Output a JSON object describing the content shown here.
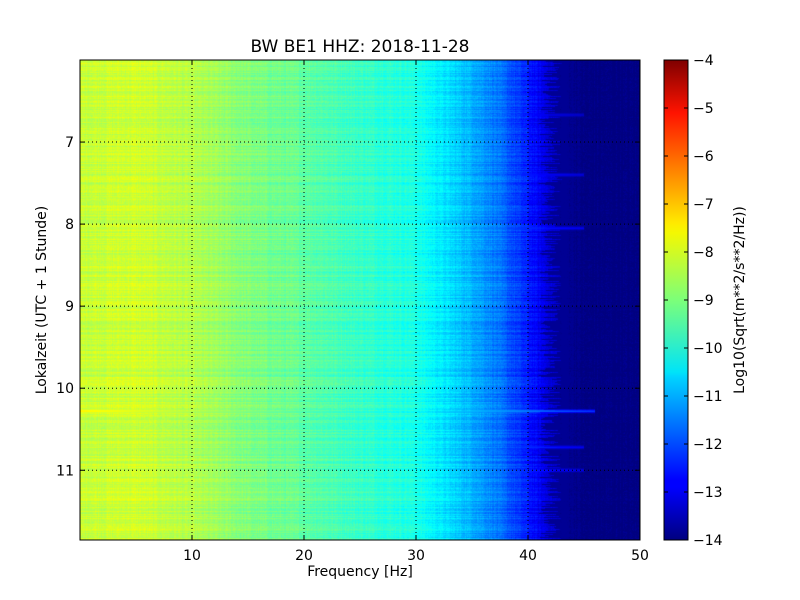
{
  "chart_data": {
    "type": "heatmap",
    "title": "BW BE1 HHZ: 2018-11-28",
    "xlabel": "Frequency [Hz]",
    "ylabel": "Lokalzeit (UTC + 1 Stunde)",
    "xlim": [
      0,
      50
    ],
    "ylim": [
      6.0,
      11.85
    ],
    "y_inverted": true,
    "x_ticks": [
      10,
      20,
      30,
      40,
      50
    ],
    "y_ticks": [
      7,
      8,
      9,
      10,
      11
    ],
    "grid": true,
    "colormap": "jet",
    "colorbar": {
      "label": "Log10(Sqrt(m**2/s**2/Hz))",
      "range": [
        -14,
        -4
      ],
      "ticks": [
        -4,
        -5,
        -6,
        -7,
        -8,
        -9,
        -10,
        -11,
        -12,
        -13,
        -14
      ]
    },
    "frequency_profile": {
      "x": [
        0,
        5,
        10,
        15,
        20,
        25,
        30,
        33,
        35,
        37,
        40,
        43,
        45,
        50
      ],
      "values": [
        -8.3,
        -8.2,
        -8.5,
        -9.0,
        -9.3,
        -9.7,
        -10.0,
        -10.6,
        -11.0,
        -11.5,
        -12.5,
        -13.6,
        -14.0,
        -14.0
      ]
    },
    "bright_bands": [
      {
        "time": 6.67,
        "level": -8.7,
        "max_freq": 45
      },
      {
        "time": 7.4,
        "level": -8.5,
        "max_freq": 45
      },
      {
        "time": 8.05,
        "level": -8.3,
        "max_freq": 45
      },
      {
        "time": 10.28,
        "level": -7.5,
        "max_freq": 46
      },
      {
        "time": 10.72,
        "level": -8.3,
        "max_freq": 45
      },
      {
        "time": 11.0,
        "level": -8.4,
        "max_freq": 45
      }
    ]
  }
}
